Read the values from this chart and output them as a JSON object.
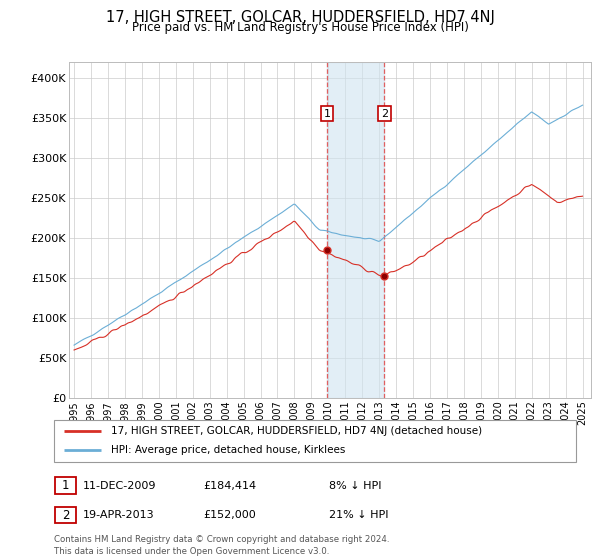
{
  "title": "17, HIGH STREET, GOLCAR, HUDDERSFIELD, HD7 4NJ",
  "subtitle": "Price paid vs. HM Land Registry's House Price Index (HPI)",
  "ylabel_ticks": [
    "£0",
    "£50K",
    "£100K",
    "£150K",
    "£200K",
    "£250K",
    "£300K",
    "£350K",
    "£400K"
  ],
  "ytick_vals": [
    0,
    50000,
    100000,
    150000,
    200000,
    250000,
    300000,
    350000,
    400000
  ],
  "ylim": [
    0,
    420000
  ],
  "legend_line1": "17, HIGH STREET, GOLCAR, HUDDERSFIELD, HD7 4NJ (detached house)",
  "legend_line2": "HPI: Average price, detached house, Kirklees",
  "annotation1_date": "11-DEC-2009",
  "annotation1_price": "£184,414",
  "annotation1_hpi": "8% ↓ HPI",
  "annotation2_date": "19-APR-2013",
  "annotation2_price": "£152,000",
  "annotation2_hpi": "21% ↓ HPI",
  "footnote": "Contains HM Land Registry data © Crown copyright and database right 2024.\nThis data is licensed under the Open Government Licence v3.0.",
  "hpi_line_color": "#6baed6",
  "price_line_color": "#d73027",
  "annotation_box_color": "#c00000",
  "shading_color": "#d0e4f0",
  "dashed_line_color": "#e06060",
  "marker1_x": 2009.917,
  "marker1_y": 184414,
  "marker2_x": 2013.3,
  "marker2_y": 152000,
  "vline1_x": 2009.917,
  "vline2_x": 2013.3,
  "xlim_min": 1994.7,
  "xlim_max": 2025.5
}
